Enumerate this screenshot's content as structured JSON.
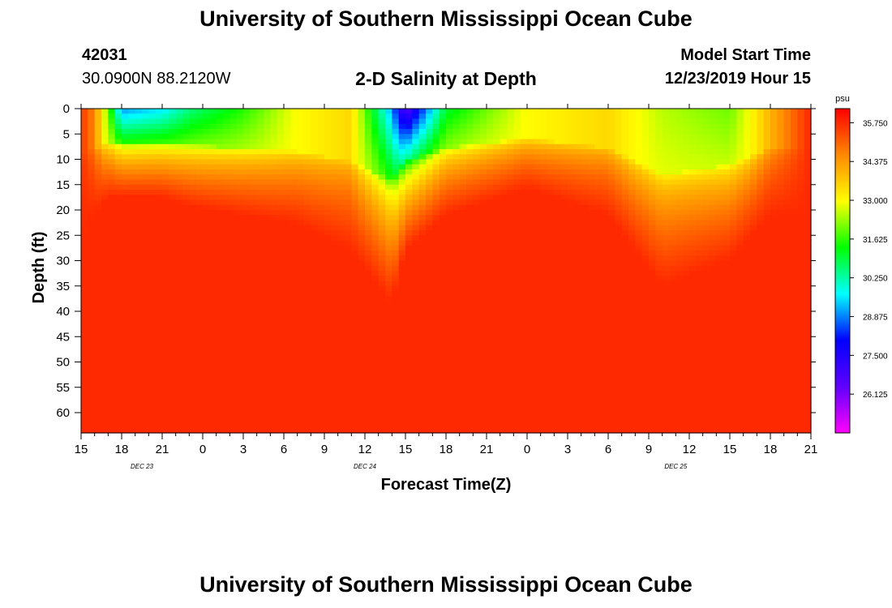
{
  "header": {
    "title": "University of Southern Mississippi Ocean Cube",
    "footer_title": "University of Southern Mississippi Ocean Cube",
    "station_id": "42031",
    "station_coords": "30.0900N 88.2120W",
    "plot_title": "2-D Salinity at Depth",
    "model_label": "Model Start Time",
    "model_time": "12/23/2019 Hour 15"
  },
  "chart_data": {
    "type": "heatmap",
    "title": "2-D Salinity at Depth",
    "xlabel": "Forecast Time(Z)",
    "ylabel": "Depth (ft)",
    "x_range_hours": [
      0,
      54
    ],
    "y_range_ft": [
      0,
      64
    ],
    "x_ticks": [
      "15",
      "18",
      "21",
      "0",
      "3",
      "6",
      "9",
      "12",
      "15",
      "18",
      "21",
      "0",
      "3",
      "6",
      "9",
      "12",
      "15",
      "18",
      "21"
    ],
    "y_ticks": [
      "0",
      "5",
      "10",
      "15",
      "20",
      "25",
      "30",
      "35",
      "40",
      "45",
      "50",
      "55",
      "60"
    ],
    "date_labels": [
      {
        "label": "DEC 23",
        "hour": 4.5
      },
      {
        "label": "DEC 24",
        "hour": 21
      },
      {
        "label": "DEC 25",
        "hour": 44
      }
    ],
    "colorbar": {
      "unit": "psu",
      "min": 24.75,
      "max": 36.25,
      "tick_values": [
        35.75,
        34.375,
        33.0,
        31.625,
        30.25,
        28.875,
        27.5,
        26.125
      ],
      "tick_labels": [
        "35.750",
        "34.375",
        "33.000",
        "31.625",
        "30.250",
        "28.875",
        "27.500",
        "26.125"
      ],
      "colors": [
        "#ff00ff",
        "#6000ff",
        "#0000ff",
        "#00ffff",
        "#00ff00",
        "#ffff00",
        "#ff8800",
        "#ff0000"
      ]
    },
    "surface_salinity_profile": [
      {
        "hour": 0,
        "surface": 35.6,
        "mixed_depth_ft": 14
      },
      {
        "hour": 1,
        "surface": 34.6,
        "mixed_depth_ft": 12
      },
      {
        "hour": 2,
        "surface": 32.0,
        "mixed_depth_ft": 10
      },
      {
        "hour": 3,
        "surface": 29.0,
        "mixed_depth_ft": 10
      },
      {
        "hour": 6,
        "surface": 29.5,
        "mixed_depth_ft": 10
      },
      {
        "hour": 8,
        "surface": 30.5,
        "mixed_depth_ft": 11
      },
      {
        "hour": 12,
        "surface": 31.5,
        "mixed_depth_ft": 12
      },
      {
        "hour": 16,
        "surface": 33.0,
        "mixed_depth_ft": 13
      },
      {
        "hour": 20,
        "surface": 33.5,
        "mixed_depth_ft": 16
      },
      {
        "hour": 23,
        "surface": 29.0,
        "mixed_depth_ft": 22
      },
      {
        "hour": 24,
        "surface": 26.5,
        "mixed_depth_ft": 16
      },
      {
        "hour": 27,
        "surface": 31.0,
        "mixed_depth_ft": 12
      },
      {
        "hour": 33,
        "surface": 33.0,
        "mixed_depth_ft": 9
      },
      {
        "hour": 39,
        "surface": 33.5,
        "mixed_depth_ft": 12
      },
      {
        "hour": 43,
        "surface": 32.5,
        "mixed_depth_ft": 20
      },
      {
        "hour": 48,
        "surface": 32.0,
        "mixed_depth_ft": 17
      },
      {
        "hour": 51,
        "surface": 34.0,
        "mixed_depth_ft": 12
      },
      {
        "hour": 54,
        "surface": 35.8,
        "mixed_depth_ft": 12
      }
    ],
    "deep_salinity": 35.75
  }
}
